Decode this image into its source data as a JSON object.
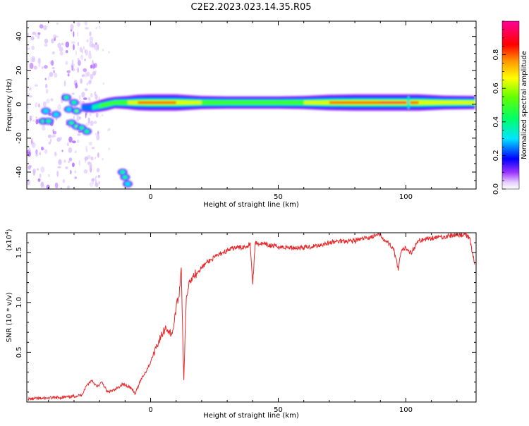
{
  "title": "C2E2.2023.023.14.35.R05",
  "chart_data": [
    {
      "type": "heatmap",
      "xlabel": "Height of straight line (km)",
      "ylabel": "Frequency (Hz)",
      "xlim": [
        -48.5,
        127.5
      ],
      "ylim": [
        -50,
        49
      ],
      "x_ticks": [
        "0",
        "50",
        "100"
      ],
      "x_tick_values": [
        0,
        50,
        100
      ],
      "y_ticks": [
        "-40",
        "-20",
        "0",
        "20",
        "40"
      ],
      "y_tick_values": [
        -40,
        -20,
        0,
        20,
        40
      ],
      "colorbar": {
        "label": "Normalized spectral amplitude",
        "range": [
          0,
          1
        ],
        "ticks": [
          "0.0",
          "0.2",
          "0.4",
          "0.6",
          "0.8"
        ],
        "tick_values": [
          0,
          0.2,
          0.4,
          0.6,
          0.8
        ],
        "colormap": [
          "#ffffff",
          "#e6ccff",
          "#9933ff",
          "#0000ff",
          "#00e6ff",
          "#00ff66",
          "#66ff00",
          "#ffff00",
          "#ff9900",
          "#ff0000",
          "#ff0099"
        ]
      },
      "blobs": [
        {
          "x": -33,
          "y": 4,
          "a": 0.4
        },
        {
          "x": -30,
          "y": 1,
          "a": 0.5
        },
        {
          "x": -29,
          "y": -4,
          "a": 0.6
        },
        {
          "x": -32,
          "y": -3,
          "a": 0.35
        },
        {
          "x": -37,
          "y": -6,
          "a": 0.3
        },
        {
          "x": -41,
          "y": -4,
          "a": 0.35
        },
        {
          "x": -42,
          "y": -10,
          "a": 0.4
        },
        {
          "x": -40,
          "y": -10,
          "a": 0.5
        },
        {
          "x": -31,
          "y": -11,
          "a": 0.45
        },
        {
          "x": -29,
          "y": -13,
          "a": 0.55
        },
        {
          "x": -27,
          "y": -14,
          "a": 0.5
        },
        {
          "x": -25,
          "y": -16,
          "a": 0.45
        },
        {
          "x": -11,
          "y": -40,
          "a": 0.5
        },
        {
          "x": -10,
          "y": -43,
          "a": 0.4
        },
        {
          "x": -9,
          "y": -47,
          "a": 0.3
        }
      ],
      "ridge": [
        {
          "x": -27,
          "y": -2,
          "a": 0.25
        },
        {
          "x": -23,
          "y": -2,
          "a": 0.4
        },
        {
          "x": -20,
          "y": -1,
          "a": 0.5
        },
        {
          "x": -17,
          "y": 0,
          "a": 0.55
        },
        {
          "x": -14,
          "y": 1,
          "a": 0.5
        },
        {
          "x": -9,
          "y": 1,
          "a": 0.6
        },
        {
          "x": -5,
          "y": 1,
          "a": 0.75
        },
        {
          "x": 0,
          "y": 1,
          "a": 0.95
        },
        {
          "x": 5,
          "y": 1,
          "a": 0.85
        },
        {
          "x": 10,
          "y": 1,
          "a": 0.8
        },
        {
          "x": 15,
          "y": 1,
          "a": 0.7
        },
        {
          "x": 20,
          "y": 1,
          "a": 0.6
        },
        {
          "x": 30,
          "y": 1,
          "a": 0.55
        },
        {
          "x": 40,
          "y": 1,
          "a": 0.55
        },
        {
          "x": 50,
          "y": 1,
          "a": 0.55
        },
        {
          "x": 60,
          "y": 1,
          "a": 0.6
        },
        {
          "x": 70,
          "y": 1,
          "a": 0.75
        },
        {
          "x": 80,
          "y": 1,
          "a": 0.85
        },
        {
          "x": 90,
          "y": 1,
          "a": 0.9
        },
        {
          "x": 100,
          "y": 1,
          "a": 0.95
        },
        {
          "x": 105,
          "y": 1,
          "a": 0.8
        },
        {
          "x": 115,
          "y": 1,
          "a": 0.65
        },
        {
          "x": 127,
          "y": 1,
          "a": 0.6
        }
      ]
    },
    {
      "type": "line",
      "xlabel": "Height of straight line (km)",
      "ylabel": "SNR (10 * v/v)",
      "y_scale_label": "(x10",
      "y_scale_exp": "4",
      "xlim": [
        -48.5,
        127.5
      ],
      "ylim": [
        0,
        1.7
      ],
      "x_ticks": [
        "0",
        "50",
        "100"
      ],
      "x_tick_values": [
        0,
        50,
        100
      ],
      "y_ticks": [
        "0.5",
        "1.0",
        "1.5"
      ],
      "y_tick_values": [
        0.5,
        1.0,
        1.5
      ],
      "series": [
        {
          "color": "#e8282a",
          "x": [
            -48,
            -40,
            -32,
            -27,
            -25,
            -23,
            -21,
            -19,
            -17,
            -14,
            -11,
            -8,
            -6,
            -4,
            -2,
            0,
            2,
            4,
            6,
            8,
            9,
            10,
            11,
            12,
            13,
            14,
            15,
            16,
            18,
            20,
            22,
            25,
            28,
            30,
            33,
            35,
            38,
            39,
            40,
            41,
            45,
            50,
            55,
            60,
            65,
            70,
            75,
            80,
            85,
            90,
            92,
            95,
            96,
            97,
            98,
            100,
            102,
            105,
            110,
            115,
            120,
            123,
            125,
            126,
            127
          ],
          "values": [
            0.03,
            0.04,
            0.05,
            0.07,
            0.17,
            0.22,
            0.15,
            0.2,
            0.1,
            0.12,
            0.18,
            0.15,
            0.08,
            0.22,
            0.3,
            0.4,
            0.55,
            0.65,
            0.75,
            0.68,
            0.75,
            0.95,
            1.05,
            1.35,
            0.22,
            1.05,
            1.2,
            1.25,
            1.3,
            1.35,
            1.4,
            1.45,
            1.5,
            1.52,
            1.55,
            1.55,
            1.57,
            1.6,
            1.18,
            1.6,
            1.58,
            1.56,
            1.55,
            1.55,
            1.57,
            1.6,
            1.62,
            1.62,
            1.65,
            1.68,
            1.62,
            1.55,
            1.45,
            1.32,
            1.5,
            1.55,
            1.5,
            1.62,
            1.65,
            1.66,
            1.68,
            1.68,
            1.65,
            1.5,
            1.38
          ]
        }
      ]
    }
  ]
}
